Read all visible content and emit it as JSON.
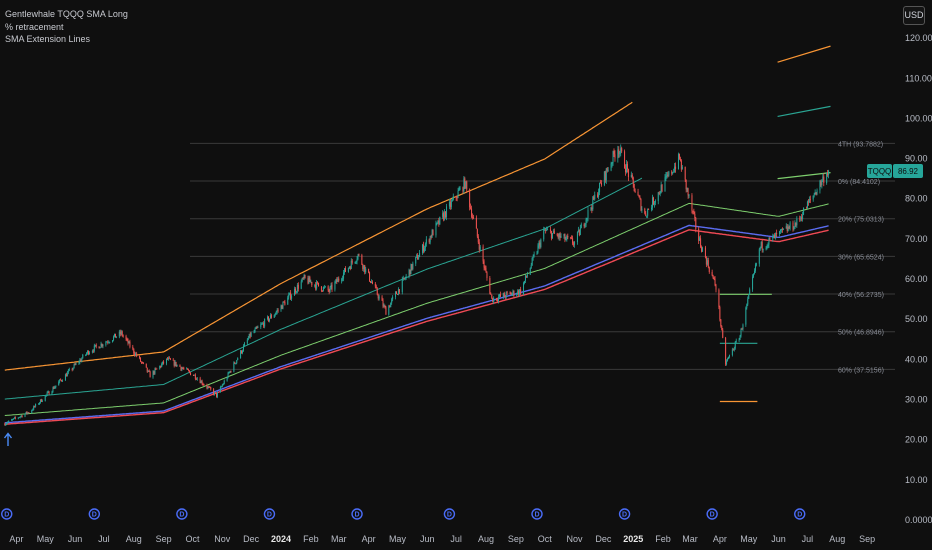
{
  "legend": [
    "Gentlewhale TQQQ SMA Long",
    "% retracement",
    "SMA Extension Lines"
  ],
  "currency_button": "USD",
  "colors": {
    "background": "#0f0f0f",
    "up": "#26a69a",
    "down": "#ef5350",
    "sma_red": "#ef4a55",
    "sma_blue": "#5b6cf0",
    "band_green": "#7ecf6e",
    "band_teal": "#2aa593",
    "band_orange": "#f89534",
    "grid": "#2a2a2a",
    "price_tag": "#26a69a"
  },
  "icons": {
    "dividend": "dividend-marker-icon",
    "arrow": "up-arrow-icon"
  },
  "chart_data": {
    "type": "candlestick",
    "symbol": "TQQQ",
    "last_price": "86.92",
    "y_ticks": [
      "0.0000",
      "10.00",
      "20.00",
      "30.00",
      "40.00",
      "50.00",
      "60.00",
      "70.00",
      "80.00",
      "90.00",
      "100.00",
      "110.00",
      "120.00"
    ],
    "ylim": [
      0,
      126
    ],
    "x_ticks": [
      "Apr",
      "May",
      "Jun",
      "Jul",
      "Aug",
      "Sep",
      "Oct",
      "Nov",
      "Dec",
      "2024",
      "Feb",
      "Mar",
      "Apr",
      "May",
      "Jun",
      "Jul",
      "Aug",
      "Sep",
      "Oct",
      "Nov",
      "Dec",
      "2025",
      "Feb",
      "Mar",
      "Apr",
      "May",
      "Jun",
      "Jul",
      "Aug",
      "Sep"
    ],
    "x_tick_bold": [
      "2024",
      "2025"
    ],
    "x_range": [
      "2023-03-15",
      "2025-09-30"
    ],
    "fib_levels": [
      {
        "label": "4TH (93.7882)",
        "value": 93.79
      },
      {
        "label": "0% (84.4102)",
        "value": 84.41
      },
      {
        "label": "20% (75.0313)",
        "value": 75.03
      },
      {
        "label": "30% (65.6524)",
        "value": 65.65
      },
      {
        "label": "40% (56.2735)",
        "value": 56.27
      },
      {
        "label": "50% (46.8946)",
        "value": 46.89
      },
      {
        "label": "60% (37.5156)",
        "value": 37.52
      }
    ],
    "dividend_marker_dates": [
      "2023-03-22",
      "2023-06-21",
      "2023-09-20",
      "2023-12-20",
      "2024-03-20",
      "2024-06-24",
      "2024-09-23",
      "2024-12-23",
      "2025-03-24",
      "2025-06-23"
    ],
    "price_anchors": [
      [
        "2023-03-20",
        24
      ],
      [
        "2023-04-15",
        27
      ],
      [
        "2023-05-10",
        33
      ],
      [
        "2023-06-15",
        42
      ],
      [
        "2023-07-19",
        46.5
      ],
      [
        "2023-08-18",
        36
      ],
      [
        "2023-09-05",
        40
      ],
      [
        "2023-10-03",
        36
      ],
      [
        "2023-10-26",
        31
      ],
      [
        "2023-11-30",
        46
      ],
      [
        "2023-12-28",
        52
      ],
      [
        "2024-01-25",
        60
      ],
      [
        "2024-02-20",
        57
      ],
      [
        "2024-03-21",
        66
      ],
      [
        "2024-04-19",
        52
      ],
      [
        "2024-05-28",
        68
      ],
      [
        "2024-07-10",
        84
      ],
      [
        "2024-08-07",
        55
      ],
      [
        "2024-09-06",
        57
      ],
      [
        "2024-10-01",
        72
      ],
      [
        "2024-11-01",
        69
      ],
      [
        "2024-12-16",
        93
      ],
      [
        "2025-01-13",
        76
      ],
      [
        "2025-02-18",
        90
      ],
      [
        "2025-03-10",
        70
      ],
      [
        "2025-03-28",
        58
      ],
      [
        "2025-04-07",
        39
      ],
      [
        "2025-04-22",
        46
      ],
      [
        "2025-05-13",
        68
      ],
      [
        "2025-06-20",
        74
      ],
      [
        "2025-07-22",
        86.9
      ]
    ],
    "sma_anchors": [
      [
        "2023-03-15",
        24
      ],
      [
        "2023-09-01",
        27
      ],
      [
        "2024-01-01",
        38
      ],
      [
        "2024-06-01",
        50
      ],
      [
        "2024-10-01",
        58
      ],
      [
        "2025-02-28",
        73
      ],
      [
        "2025-06-01",
        70
      ],
      [
        "2025-07-25",
        73
      ]
    ],
    "band_offsets": {
      "green": 1.08,
      "teal": 1.25,
      "orange": 1.55
    },
    "orange_band_segments": [
      {
        "from": "2025-04-01",
        "to": "2025-05-10",
        "value": 29.5
      },
      {
        "from": "2025-05-31",
        "to": "2025-07-25",
        "value": 114,
        "end_value": 118
      }
    ],
    "teal_band_segments": [
      {
        "from": "2025-04-01",
        "to": "2025-05-10",
        "value": 44
      },
      {
        "from": "2025-05-31",
        "to": "2025-07-25",
        "value": 100.5,
        "end_value": 103
      }
    ],
    "green_band_segments": [
      {
        "from": "2025-04-01",
        "to": "2025-05-25",
        "value": 56.2
      },
      {
        "from": "2025-05-31",
        "to": "2025-07-25",
        "value": 85,
        "end_value": 86.5
      }
    ]
  }
}
